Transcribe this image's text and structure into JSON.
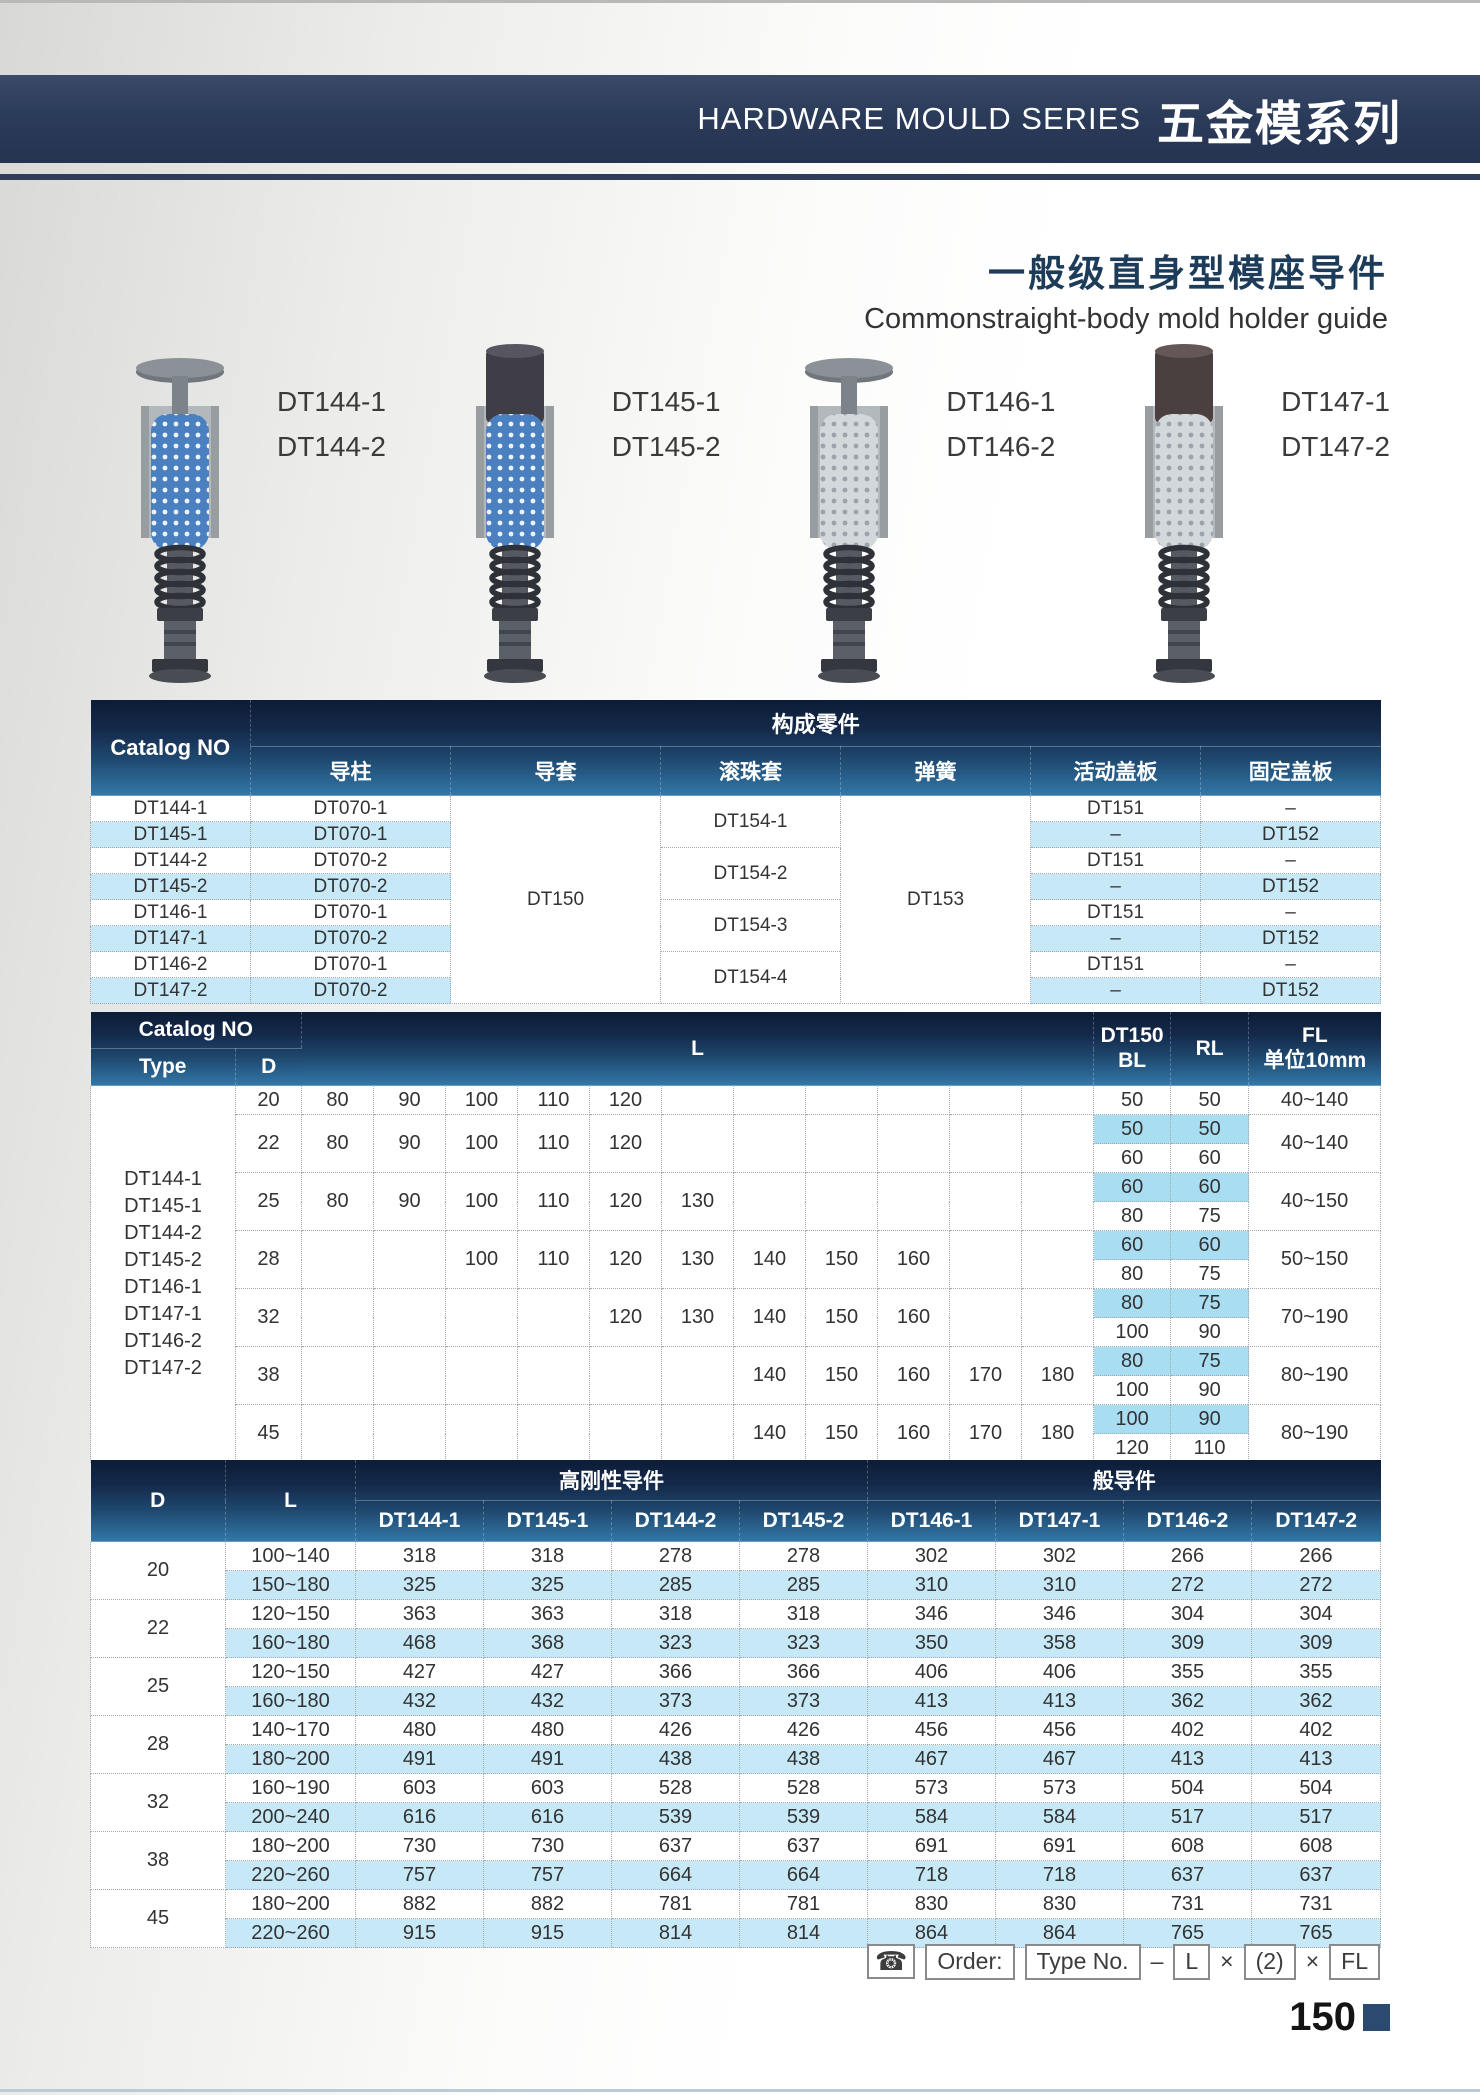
{
  "header": {
    "banner_en": "HARDWARE MOULD SERIES",
    "banner_cn": "五金模系列"
  },
  "title": {
    "cn": "一般级直身型模座导件",
    "en": "Commonstraight-body mold holder guide"
  },
  "products": [
    {
      "labels": [
        "DT144-1",
        "DT144-2"
      ],
      "head": "flat",
      "cage": "blue"
    },
    {
      "labels": [
        "DT145-1",
        "DT145-2"
      ],
      "head": "cylinder",
      "cage": "blue"
    },
    {
      "labels": [
        "DT146-1",
        "DT146-2"
      ],
      "head": "flat",
      "cage": "white"
    },
    {
      "labels": [
        "DT147-1",
        "DT147-2"
      ],
      "head": "cylinder",
      "cage": "white"
    }
  ],
  "components_table": {
    "catalog_header": "Catalog NO",
    "group_header": "构成零件",
    "columns": [
      "导柱",
      "导套",
      "滚珠套",
      "弹簧",
      "活动盖板",
      "固定盖板"
    ],
    "guide_bush": "DT150",
    "spring": "DT153",
    "ball_cages": [
      "DT154-1",
      "DT154-2",
      "DT154-3",
      "DT154-4"
    ],
    "rows": [
      {
        "catalog": "DT144-1",
        "pillar": "DT070-1",
        "movable_plate": "DT151",
        "fixed_plate": "–"
      },
      {
        "catalog": "DT145-1",
        "pillar": "DT070-1",
        "movable_plate": "–",
        "fixed_plate": "DT152"
      },
      {
        "catalog": "DT144-2",
        "pillar": "DT070-2",
        "movable_plate": "DT151",
        "fixed_plate": "–"
      },
      {
        "catalog": "DT145-2",
        "pillar": "DT070-2",
        "movable_plate": "–",
        "fixed_plate": "DT152"
      },
      {
        "catalog": "DT146-1",
        "pillar": "DT070-1",
        "movable_plate": "DT151",
        "fixed_plate": "–"
      },
      {
        "catalog": "DT147-1",
        "pillar": "DT070-2",
        "movable_plate": "–",
        "fixed_plate": "DT152"
      },
      {
        "catalog": "DT146-2",
        "pillar": "DT070-1",
        "movable_plate": "DT151",
        "fixed_plate": "–"
      },
      {
        "catalog": "DT147-2",
        "pillar": "DT070-2",
        "movable_plate": "–",
        "fixed_plate": "DT152"
      }
    ]
  },
  "dimensions_table": {
    "catalog_header": "Catalog NO",
    "type_header": "Type",
    "d_header": "D",
    "l_header": "L",
    "bl_line1": "DT150",
    "bl_line2": "BL",
    "rl_header": "RL",
    "fl_line1": "FL",
    "fl_line2": "单位10mm",
    "types": [
      "DT144-1",
      "DT145-1",
      "DT144-2",
      "DT145-2",
      "DT146-1",
      "DT147-1",
      "DT146-2",
      "DT147-2"
    ],
    "rows": [
      {
        "d": "20",
        "l": [
          "80",
          "90",
          "100",
          "110",
          "120",
          "",
          "",
          "",
          "",
          "",
          ""
        ],
        "pairs": [
          [
            "50",
            "50"
          ]
        ],
        "fl": "40~140",
        "hl": false
      },
      {
        "d": "22",
        "l": [
          "80",
          "90",
          "100",
          "110",
          "120",
          "",
          "",
          "",
          "",
          "",
          ""
        ],
        "pairs": [
          [
            "50",
            "50"
          ],
          [
            "60",
            "60"
          ]
        ],
        "fl": "40~140",
        "hl": true
      },
      {
        "d": "25",
        "l": [
          "80",
          "90",
          "100",
          "110",
          "120",
          "130",
          "",
          "",
          "",
          "",
          ""
        ],
        "pairs": [
          [
            "60",
            "60"
          ],
          [
            "80",
            "75"
          ]
        ],
        "fl": "40~150",
        "hl": true
      },
      {
        "d": "28",
        "l": [
          "",
          "",
          "100",
          "110",
          "120",
          "130",
          "140",
          "150",
          "160",
          "",
          ""
        ],
        "pairs": [
          [
            "60",
            "60"
          ],
          [
            "80",
            "75"
          ]
        ],
        "fl": "50~150",
        "hl": true
      },
      {
        "d": "32",
        "l": [
          "",
          "",
          "",
          "",
          "120",
          "130",
          "140",
          "150",
          "160",
          "",
          ""
        ],
        "pairs": [
          [
            "80",
            "75"
          ],
          [
            "100",
            "90"
          ]
        ],
        "fl": "70~190",
        "hl": true
      },
      {
        "d": "38",
        "l": [
          "",
          "",
          "",
          "",
          "",
          "",
          "140",
          "150",
          "160",
          "170",
          "180"
        ],
        "pairs": [
          [
            "80",
            "75"
          ],
          [
            "100",
            "90"
          ]
        ],
        "fl": "80~190",
        "hl": true
      },
      {
        "d": "45",
        "l": [
          "",
          "",
          "",
          "",
          "",
          "",
          "140",
          "150",
          "160",
          "170",
          "180"
        ],
        "pairs": [
          [
            "100",
            "90"
          ],
          [
            "120",
            "110"
          ]
        ],
        "fl": "80~190",
        "hl": true
      }
    ]
  },
  "lengths_table": {
    "d_header": "D",
    "l_header": "L",
    "group_rigid": "高刚性导件",
    "group_general": "般导件",
    "columns": [
      "DT144-1",
      "DT145-1",
      "DT144-2",
      "DT145-2",
      "DT146-1",
      "DT147-1",
      "DT146-2",
      "DT147-2"
    ],
    "groups": [
      {
        "d": "20",
        "rows": [
          {
            "l": "100~140",
            "values": [
              "318",
              "318",
              "278",
              "278",
              "302",
              "302",
              "266",
              "266"
            ]
          },
          {
            "l": "150~180",
            "values": [
              "325",
              "325",
              "285",
              "285",
              "310",
              "310",
              "272",
              "272"
            ]
          }
        ]
      },
      {
        "d": "22",
        "rows": [
          {
            "l": "120~150",
            "values": [
              "363",
              "363",
              "318",
              "318",
              "346",
              "346",
              "304",
              "304"
            ]
          },
          {
            "l": "160~180",
            "values": [
              "468",
              "368",
              "323",
              "323",
              "350",
              "358",
              "309",
              "309"
            ]
          }
        ]
      },
      {
        "d": "25",
        "rows": [
          {
            "l": "120~150",
            "values": [
              "427",
              "427",
              "366",
              "366",
              "406",
              "406",
              "355",
              "355"
            ]
          },
          {
            "l": "160~180",
            "values": [
              "432",
              "432",
              "373",
              "373",
              "413",
              "413",
              "362",
              "362"
            ]
          }
        ]
      },
      {
        "d": "28",
        "rows": [
          {
            "l": "140~170",
            "values": [
              "480",
              "480",
              "426",
              "426",
              "456",
              "456",
              "402",
              "402"
            ]
          },
          {
            "l": "180~200",
            "values": [
              "491",
              "491",
              "438",
              "438",
              "467",
              "467",
              "413",
              "413"
            ]
          }
        ]
      },
      {
        "d": "32",
        "rows": [
          {
            "l": "160~190",
            "values": [
              "603",
              "603",
              "528",
              "528",
              "573",
              "573",
              "504",
              "504"
            ]
          },
          {
            "l": "200~240",
            "values": [
              "616",
              "616",
              "539",
              "539",
              "584",
              "584",
              "517",
              "517"
            ]
          }
        ]
      },
      {
        "d": "38",
        "rows": [
          {
            "l": "180~200",
            "values": [
              "730",
              "730",
              "637",
              "637",
              "691",
              "691",
              "608",
              "608"
            ]
          },
          {
            "l": "220~260",
            "values": [
              "757",
              "757",
              "664",
              "664",
              "718",
              "718",
              "637",
              "637"
            ]
          }
        ]
      },
      {
        "d": "45",
        "rows": [
          {
            "l": "180~200",
            "values": [
              "882",
              "882",
              "781",
              "781",
              "830",
              "830",
              "731",
              "731"
            ]
          },
          {
            "l": "220~260",
            "values": [
              "915",
              "915",
              "814",
              "814",
              "864",
              "864",
              "765",
              "765"
            ]
          }
        ]
      }
    ]
  },
  "order_note": {
    "order_label": "Order:",
    "type_label": "Type No.",
    "dash": "–",
    "l_label": "L",
    "times1": "×",
    "qty_label": "(2)",
    "times2": "×",
    "fl_label": "FL"
  },
  "icons": {
    "phone": "☎"
  },
  "page_number": "150",
  "colors": {
    "navy": "#2b3b5a",
    "header_gradient_top": "#0c1c36",
    "header_gradient_bottom": "#3379aa",
    "row_alt": "#c6e8f7",
    "highlight": "#a9ddf2",
    "cage_blue": "#4a80c0",
    "cage_white": "#d3d8dc"
  }
}
